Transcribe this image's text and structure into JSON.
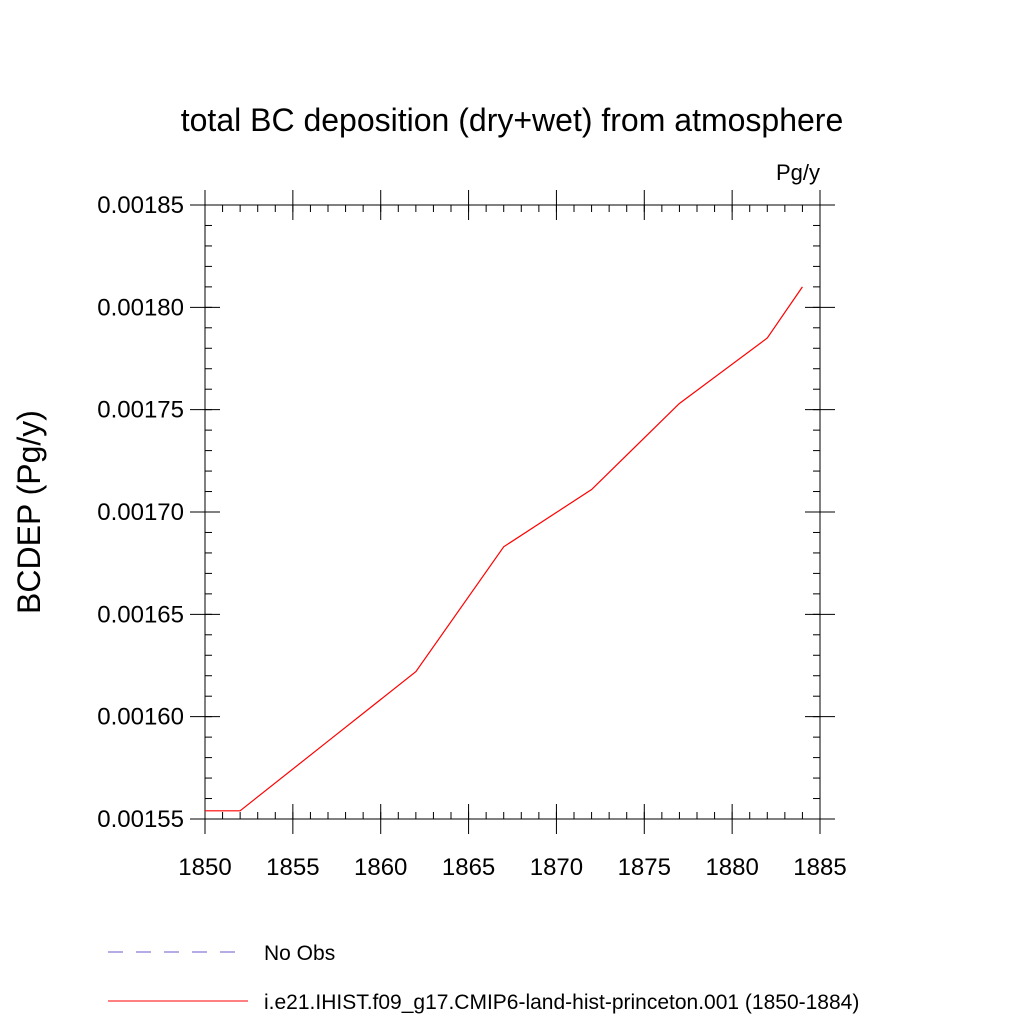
{
  "chart_data": {
    "type": "line",
    "title": "total BC deposition (dry+wet) from atmosphere",
    "units_label": "Pg/y",
    "ylabel": "BCDEP  (Pg/y)",
    "xlabel": "",
    "xlim": [
      1850,
      1885
    ],
    "ylim": [
      0.00155,
      0.00185
    ],
    "x_ticks": [
      1850,
      1855,
      1860,
      1865,
      1870,
      1875,
      1880,
      1885
    ],
    "x_tick_labels": [
      "1850",
      "1855",
      "1860",
      "1865",
      "1870",
      "1875",
      "1880",
      "1885"
    ],
    "y_ticks": [
      0.00155,
      0.0016,
      0.00165,
      0.0017,
      0.00175,
      0.0018,
      0.00185
    ],
    "y_tick_labels": [
      "0.00155",
      "0.00160",
      "0.00165",
      "0.00170",
      "0.00175",
      "0.00180",
      "0.00185"
    ],
    "x_minor_step": 1,
    "y_minor_step": 1e-05,
    "grid": false,
    "legend_position": "bottom",
    "series": [
      {
        "name": "i.e21.IHIST.f09_g17.CMIP6-land-hist-princeton.001 (1850-1884)",
        "color": "#ff0000",
        "dash": "solid",
        "x": [
          1850,
          1852,
          1857,
          1862,
          1867,
          1872,
          1877,
          1882,
          1884
        ],
        "y": [
          0.001554,
          0.001554,
          0.001588,
          0.001622,
          0.001683,
          0.001711,
          0.001753,
          0.001785,
          0.00181
        ]
      }
    ],
    "legend": [
      {
        "label": "No Obs",
        "color": "#6a5acd",
        "dash": "dashed"
      },
      {
        "label": "i.e21.IHIST.f09_g17.CMIP6-land-hist-princeton.001 (1850-1884)",
        "color": "#ff0000",
        "dash": "solid"
      }
    ]
  }
}
